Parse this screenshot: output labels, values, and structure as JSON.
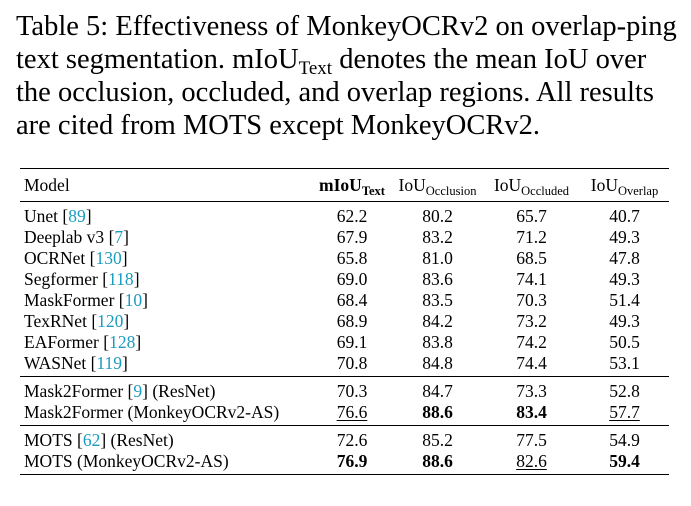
{
  "caption": {
    "label": "Table 5:",
    "text_a": "Effectiveness of MonkeyOCRv2 on overlap-ping text segmentation. mIoU",
    "sub": "Text",
    "text_b": "denotes the mean IoU over the occlusion, occluded, and overlap regions. All results are cited from MOTS except MonkeyOCRv2."
  },
  "table": {
    "headers": [
      {
        "main": "Model",
        "sub": ""
      },
      {
        "main": "mIoU",
        "sub": "Text"
      },
      {
        "main": "IoU",
        "sub": "Occlusion"
      },
      {
        "main": "IoU",
        "sub": "Occluded"
      },
      {
        "main": "IoU",
        "sub": "Overlap"
      }
    ],
    "groups": [
      {
        "rows": [
          {
            "name": "Unet",
            "ref": "89",
            "suffix": "",
            "values": [
              "62.2",
              "80.2",
              "65.7",
              "40.7"
            ]
          },
          {
            "name": "Deeplab v3",
            "ref": "7",
            "suffix": "",
            "values": [
              "67.9",
              "83.2",
              "71.2",
              "49.3"
            ]
          },
          {
            "name": "OCRNet",
            "ref": "130",
            "suffix": "",
            "values": [
              "65.8",
              "81.0",
              "68.5",
              "47.8"
            ]
          },
          {
            "name": "Segformer",
            "ref": "118",
            "suffix": "",
            "values": [
              "69.0",
              "83.6",
              "74.1",
              "49.3"
            ]
          },
          {
            "name": "MaskFormer",
            "ref": "10",
            "suffix": "",
            "values": [
              "68.4",
              "83.5",
              "70.3",
              "51.4"
            ]
          },
          {
            "name": "TexRNet",
            "ref": "120",
            "suffix": "",
            "values": [
              "68.9",
              "84.2",
              "73.2",
              "49.3"
            ]
          },
          {
            "name": "EAFormer",
            "ref": "128",
            "suffix": "",
            "values": [
              "69.1",
              "83.8",
              "74.2",
              "50.5"
            ]
          },
          {
            "name": "WASNet",
            "ref": "119",
            "suffix": "",
            "values": [
              "70.8",
              "84.8",
              "74.4",
              "53.1"
            ]
          }
        ]
      },
      {
        "rows": [
          {
            "name": "Mask2Former",
            "ref": "9",
            "suffix": "(ResNet)",
            "values": [
              "70.3",
              "84.7",
              "73.3",
              "52.8"
            ]
          },
          {
            "name": "Mask2Former (MonkeyOCRv2-AS)",
            "ref": "",
            "suffix": "",
            "values": [
              "76.6",
              "88.6",
              "83.4",
              "57.7"
            ]
          }
        ]
      },
      {
        "rows": [
          {
            "name": "MOTS",
            "ref": "62",
            "suffix": "(ResNet)",
            "values": [
              "72.6",
              "85.2",
              "77.5",
              "54.9"
            ]
          },
          {
            "name": "MOTS (MonkeyOCRv2-AS)",
            "ref": "",
            "suffix": "",
            "values": [
              "76.9",
              "88.6",
              "82.6",
              "59.4"
            ]
          }
        ]
      }
    ]
  }
}
